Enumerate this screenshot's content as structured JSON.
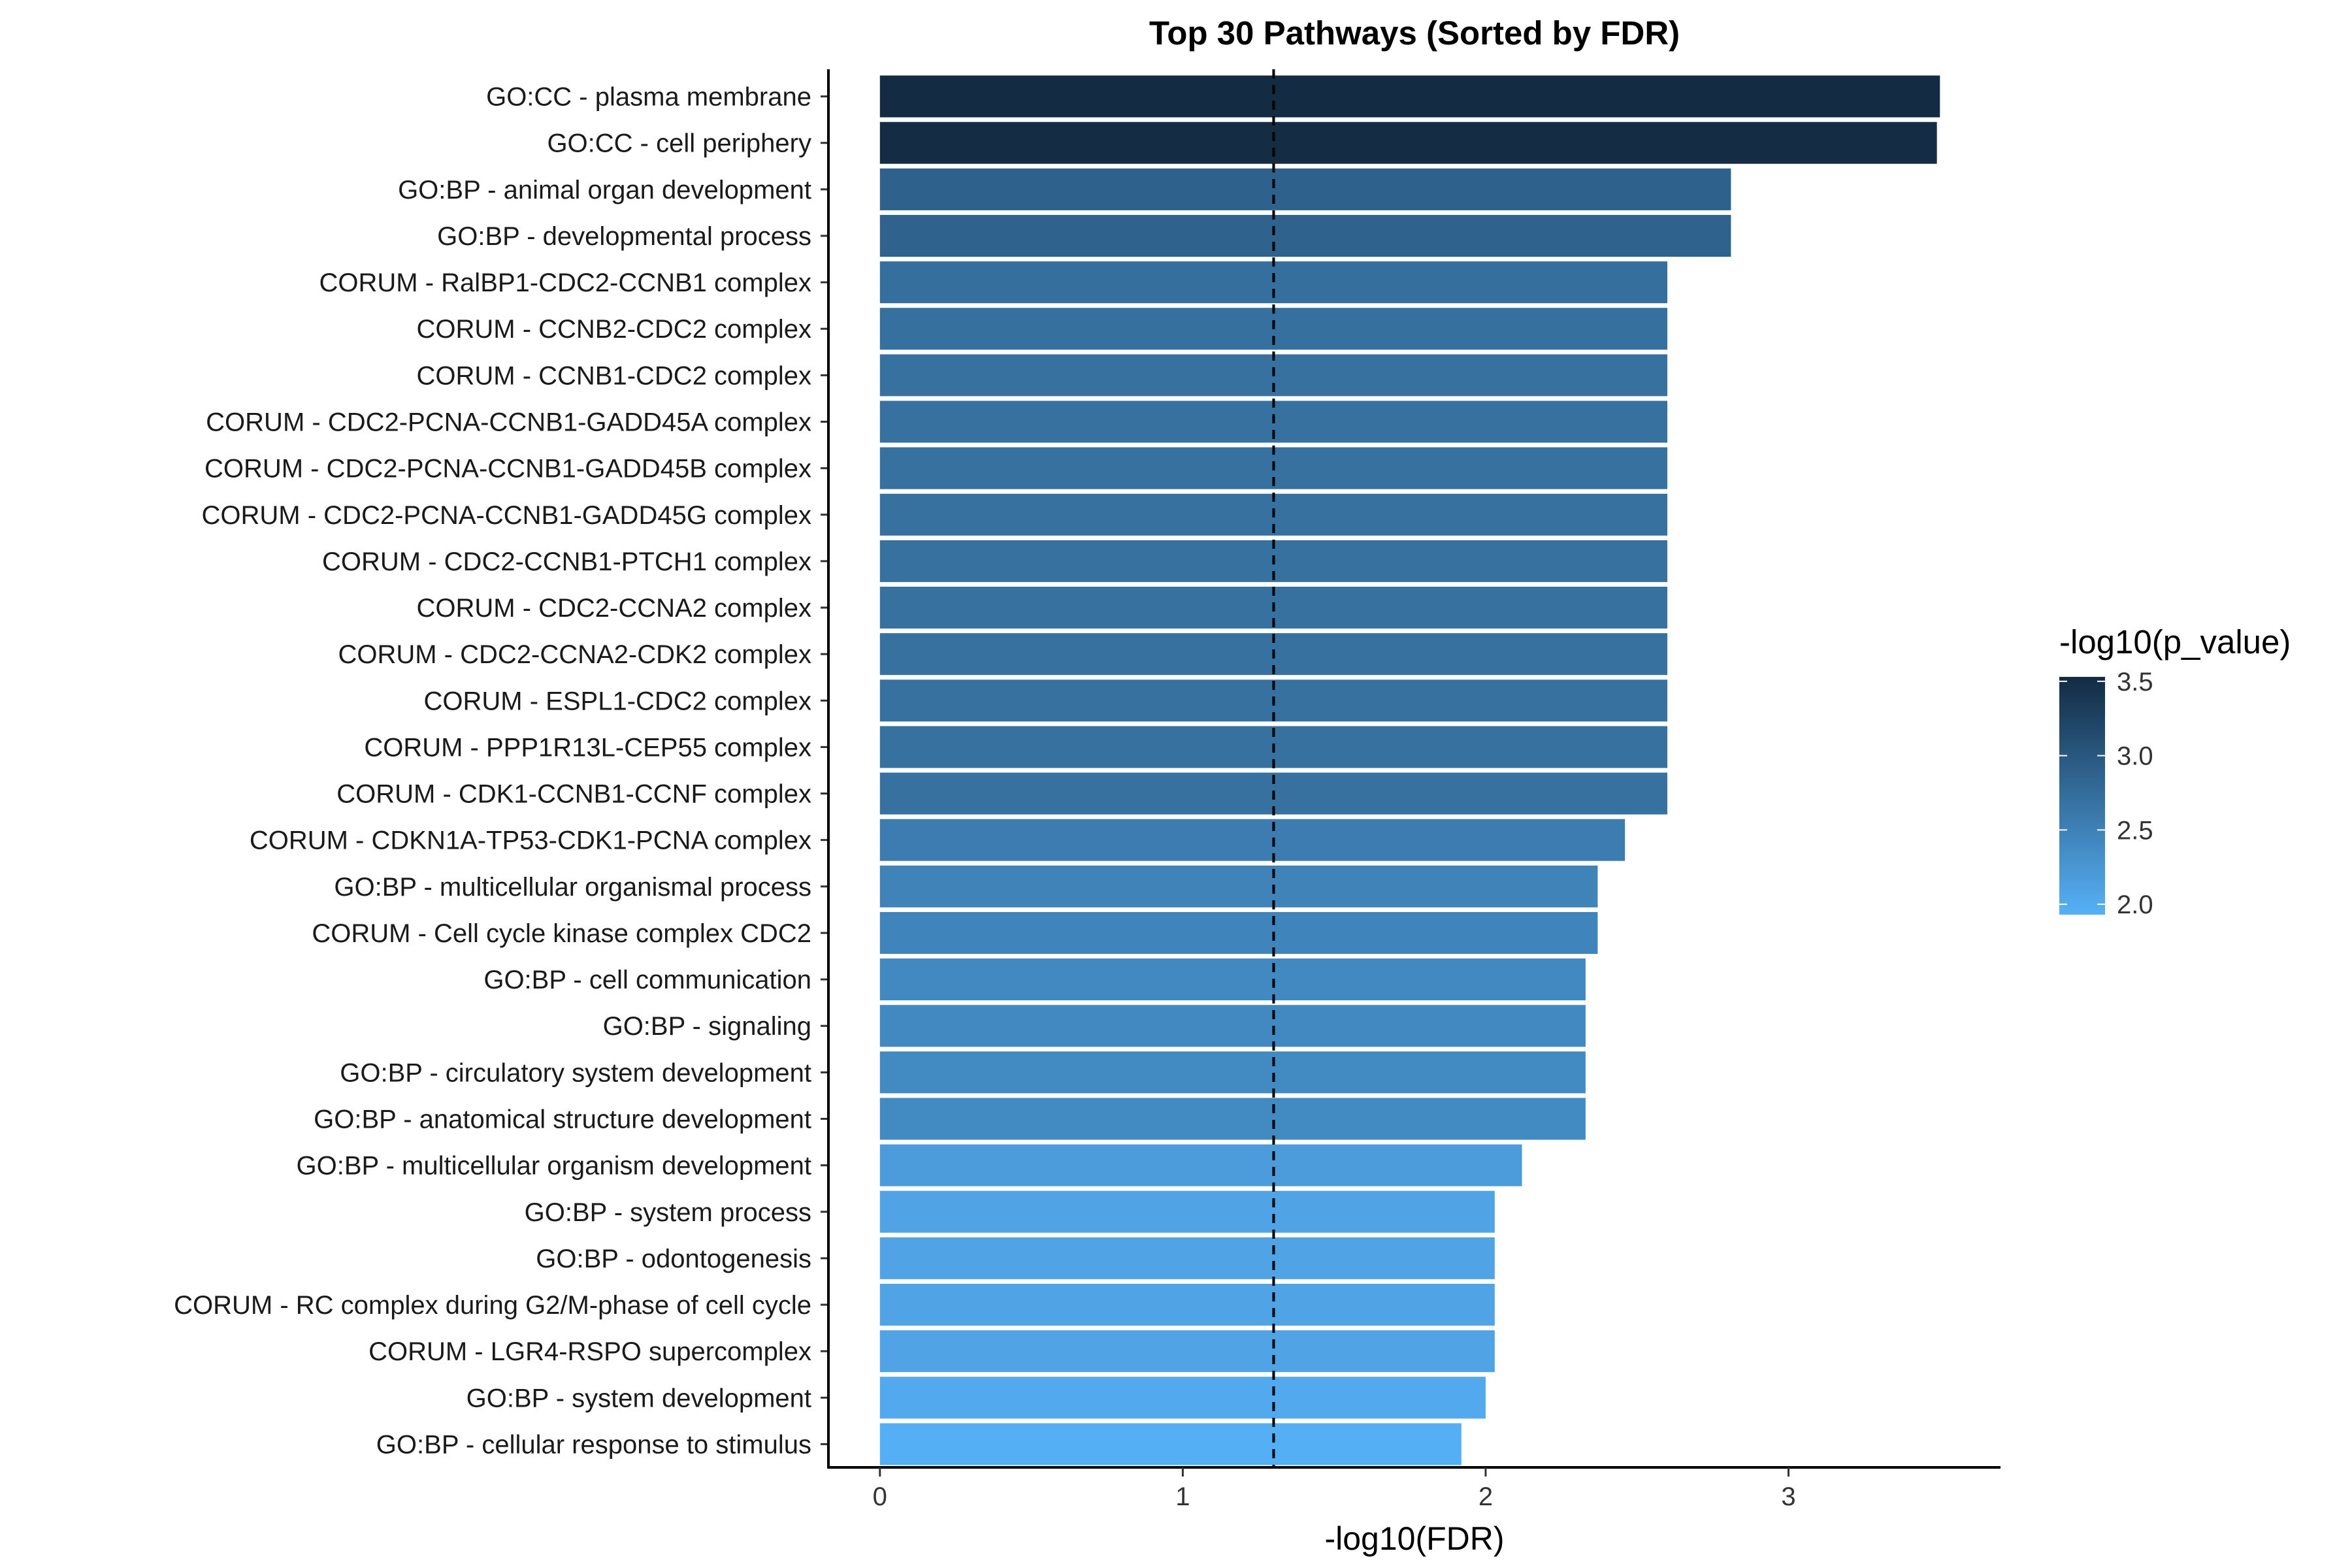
{
  "chart_data": {
    "type": "bar",
    "orientation": "horizontal",
    "title": "Top 30 Pathways (Sorted by FDR)",
    "xlabel": "-log10(FDR)",
    "ylabel": "",
    "xlim": [
      -0.17,
      3.7
    ],
    "xticks": [
      0,
      1,
      2,
      3
    ],
    "reference_line": {
      "x": 1.3,
      "style": "dashed"
    },
    "color_scale": {
      "title": "-log10(p_value)",
      "low": 1.93,
      "high": 3.53,
      "low_color": "#56B1F7",
      "high_color": "#132B43",
      "ticks": [
        2.0,
        2.5,
        3.0,
        3.5
      ]
    },
    "legend_position": "right",
    "grid": false,
    "categories": [
      "GO:CC - plasma membrane",
      "GO:CC - cell periphery",
      "GO:BP - animal organ development",
      "GO:BP - developmental process",
      "CORUM - RalBP1-CDC2-CCNB1 complex",
      "CORUM - CCNB2-CDC2 complex",
      "CORUM - CCNB1-CDC2 complex",
      "CORUM - CDC2-PCNA-CCNB1-GADD45A complex",
      "CORUM - CDC2-PCNA-CCNB1-GADD45B complex",
      "CORUM - CDC2-PCNA-CCNB1-GADD45G complex",
      "CORUM - CDC2-CCNB1-PTCH1 complex",
      "CORUM - CDC2-CCNA2 complex",
      "CORUM - CDC2-CCNA2-CDK2 complex",
      "CORUM - ESPL1-CDC2 complex",
      "CORUM - PPP1R13L-CEP55 complex",
      "CORUM - CDK1-CCNB1-CCNF complex",
      "CORUM - CDKN1A-TP53-CDK1-PCNA complex",
      "GO:BP - multicellular organismal process",
      "CORUM - Cell cycle kinase complex CDC2",
      "GO:BP - cell communication",
      "GO:BP - signaling",
      "GO:BP - circulatory system development",
      "GO:BP - anatomical structure development",
      "GO:BP - multicellular organism development",
      "GO:BP - system process",
      "GO:BP - odontogenesis",
      "CORUM - RC complex during G2/M-phase of cell cycle",
      "CORUM - LGR4-RSPO supercomplex",
      "GO:BP - system development",
      "GO:BP - cellular response to stimulus"
    ],
    "values": [
      3.5,
      3.49,
      2.81,
      2.81,
      2.6,
      2.6,
      2.6,
      2.6,
      2.6,
      2.6,
      2.6,
      2.6,
      2.6,
      2.6,
      2.6,
      2.6,
      2.46,
      2.37,
      2.37,
      2.33,
      2.33,
      2.33,
      2.33,
      2.12,
      2.03,
      2.03,
      2.03,
      2.03,
      2.0,
      1.92
    ],
    "color_values": [
      3.53,
      3.51,
      2.88,
      2.87,
      2.72,
      2.71,
      2.7,
      2.7,
      2.7,
      2.7,
      2.7,
      2.7,
      2.7,
      2.7,
      2.7,
      2.7,
      2.56,
      2.48,
      2.47,
      2.41,
      2.41,
      2.4,
      2.4,
      2.18,
      2.08,
      2.08,
      2.08,
      2.08,
      2.02,
      1.95
    ]
  }
}
